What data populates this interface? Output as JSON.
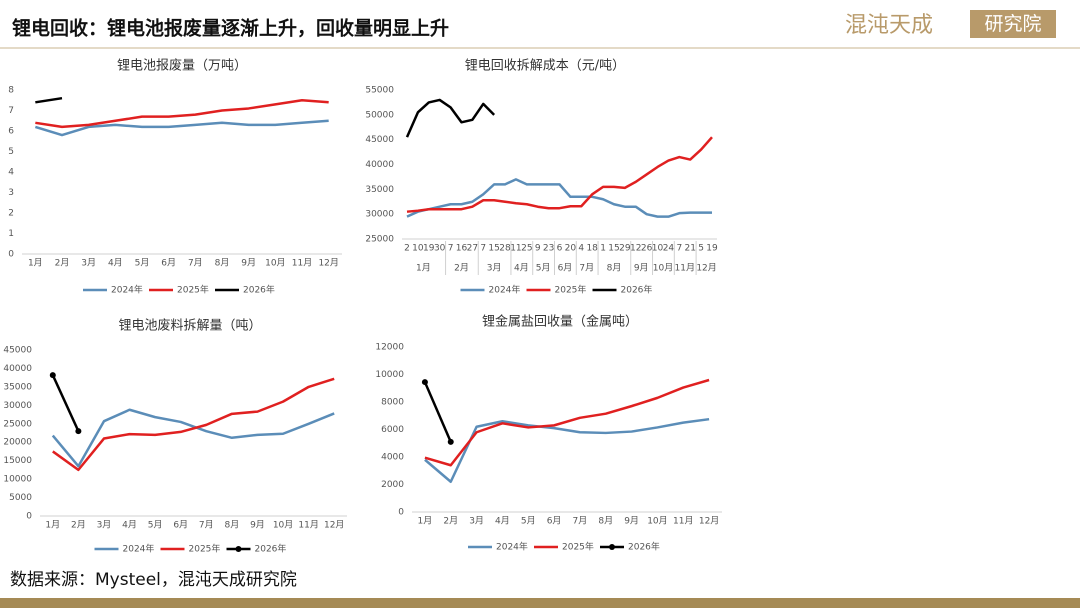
{
  "header": {
    "title": "锂电回收：锂电池报废量逐渐上升，回收量明显上升",
    "logo_main": "混沌天成",
    "logo_box": "研究院"
  },
  "footer": {
    "source": "数据来源：Mysteel，混沌天成研究院"
  },
  "chart_data": [
    {
      "type": "line",
      "title": "锂电池报废量（万吨）",
      "categories": [
        "1月",
        "2月",
        "3月",
        "4月",
        "5月",
        "6月",
        "7月",
        "8月",
        "9月",
        "10月",
        "11月",
        "12月"
      ],
      "ylim": [
        0,
        8
      ],
      "yticks": [
        0,
        1,
        2,
        3,
        4,
        5,
        6,
        7,
        8
      ],
      "series": [
        {
          "name": "2024年",
          "color": "#5b8db8",
          "values": [
            6.2,
            5.8,
            6.2,
            6.3,
            6.2,
            6.2,
            6.3,
            6.4,
            6.3,
            6.3,
            6.4,
            6.5
          ]
        },
        {
          "name": "2025年",
          "color": "#e02020",
          "values": [
            6.4,
            6.2,
            6.3,
            6.5,
            6.7,
            6.7,
            6.8,
            7.0,
            7.1,
            7.3,
            7.5,
            7.4
          ]
        },
        {
          "name": "2026年",
          "color": "#000000",
          "values": [
            7.4,
            7.6,
            null,
            null,
            null,
            null,
            null,
            null,
            null,
            null,
            null,
            null
          ]
        }
      ]
    },
    {
      "type": "line",
      "title": "锂电回收拆解成本（元/吨）",
      "category_groups": [
        {
          "label": "1月",
          "categories": [
            "2",
            "10",
            "19",
            "30"
          ]
        },
        {
          "label": "2月",
          "categories": [
            "7",
            "16",
            "27"
          ]
        },
        {
          "label": "3月",
          "categories": [
            "7",
            "15",
            "28"
          ]
        },
        {
          "label": "4月",
          "categories": [
            "11",
            "25"
          ]
        },
        {
          "label": "5月",
          "categories": [
            "9",
            "23"
          ]
        },
        {
          "label": "6月",
          "categories": [
            "6",
            "20"
          ]
        },
        {
          "label": "7月",
          "categories": [
            "4",
            "18"
          ]
        },
        {
          "label": "8月",
          "categories": [
            "1",
            "15",
            "29"
          ]
        },
        {
          "label": "9月",
          "categories": [
            "12",
            "26"
          ]
        },
        {
          "label": "10月",
          "categories": [
            "10",
            "24"
          ]
        },
        {
          "label": "11月",
          "categories": [
            "7",
            "21"
          ]
        },
        {
          "label": "12月",
          "categories": [
            "5",
            "19"
          ]
        }
      ],
      "ylim": [
        25000,
        55000
      ],
      "yticks": [
        25000,
        30000,
        35000,
        40000,
        45000,
        50000,
        55000
      ],
      "series": [
        {
          "name": "2024年",
          "color": "#5b8db8",
          "values": [
            29500,
            30500,
            31000,
            31500,
            32000,
            32000,
            32500,
            34000,
            36000,
            36000,
            37000,
            36000,
            36000,
            36000,
            36000,
            33500,
            33500,
            33500,
            33000,
            32000,
            31500,
            31500,
            30000,
            29500,
            29500,
            30200,
            30300,
            30300,
            30300
          ]
        },
        {
          "name": "2025年",
          "color": "#e02020",
          "values": [
            30500,
            30700,
            31000,
            31000,
            31000,
            31000,
            31500,
            32800,
            32800,
            32500,
            32200,
            32000,
            31500,
            31200,
            31200,
            31600,
            31600,
            34000,
            35500,
            35500,
            35300,
            36500,
            38000,
            39500,
            40800,
            41500,
            41000,
            43000,
            45500
          ]
        },
        {
          "name": "2026年",
          "color": "#000000",
          "values": [
            45500,
            50500,
            52500,
            53000,
            51500,
            48500,
            49000,
            52200,
            50000,
            null,
            null,
            null,
            null,
            null,
            null,
            null,
            null,
            null,
            null,
            null,
            null,
            null,
            null,
            null,
            null,
            null,
            null,
            null,
            null
          ]
        }
      ]
    },
    {
      "type": "line",
      "title": "锂电池废料拆解量（吨）",
      "categories": [
        "1月",
        "2月",
        "3月",
        "4月",
        "5月",
        "6月",
        "7月",
        "8月",
        "9月",
        "10月",
        "11月",
        "12月"
      ],
      "ylim": [
        0,
        45000
      ],
      "yticks": [
        0,
        5000,
        10000,
        15000,
        20000,
        25000,
        30000,
        35000,
        40000,
        45000
      ],
      "series": [
        {
          "name": "2024年",
          "color": "#5b8db8",
          "values": [
            21800,
            13500,
            25700,
            28800,
            26800,
            25500,
            23000,
            21200,
            22000,
            22300,
            25000,
            27800
          ]
        },
        {
          "name": "2025年",
          "color": "#e02020",
          "values": [
            17500,
            12500,
            21000,
            22200,
            22000,
            22800,
            24700,
            27700,
            28300,
            31000,
            35000,
            37200
          ]
        },
        {
          "name": "2026年",
          "color": "#000000",
          "markers": true,
          "values": [
            38200,
            23000,
            null,
            null,
            null,
            null,
            null,
            null,
            null,
            null,
            null,
            null
          ]
        }
      ]
    },
    {
      "type": "line",
      "title": "锂金属盐回收量（金属吨）",
      "categories": [
        "1月",
        "2月",
        "3月",
        "4月",
        "5月",
        "6月",
        "7月",
        "8月",
        "9月",
        "10月",
        "11月",
        "12月"
      ],
      "ylim": [
        0,
        12000
      ],
      "yticks": [
        0,
        2000,
        4000,
        6000,
        8000,
        10000,
        12000
      ],
      "series": [
        {
          "name": "2024年",
          "color": "#5b8db8",
          "values": [
            3800,
            2200,
            6200,
            6600,
            6300,
            6100,
            5800,
            5750,
            5850,
            6150,
            6500,
            6750
          ]
        },
        {
          "name": "2025年",
          "color": "#e02020",
          "values": [
            3950,
            3400,
            5800,
            6450,
            6150,
            6300,
            6850,
            7150,
            7700,
            8300,
            9050,
            9600
          ]
        },
        {
          "name": "2026年",
          "color": "#000000",
          "markers": true,
          "values": [
            9450,
            5100,
            null,
            null,
            null,
            null,
            null,
            null,
            null,
            null,
            null,
            null
          ]
        }
      ]
    }
  ]
}
